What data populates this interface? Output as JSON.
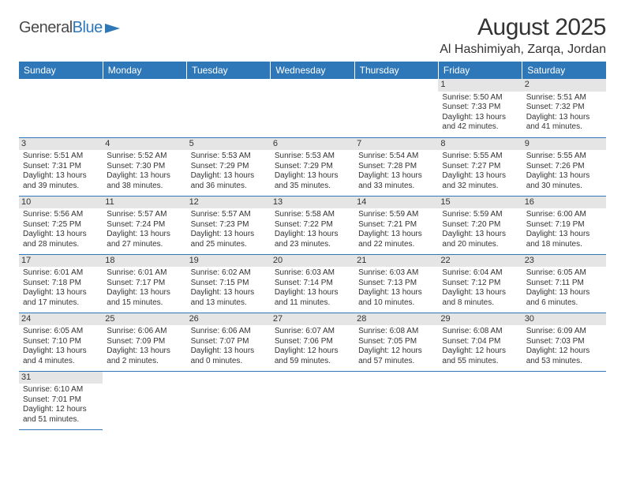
{
  "logo": {
    "word1": "General",
    "word2": "Blue",
    "icon_color": "#2e77b8"
  },
  "title": {
    "month": "August 2025",
    "location": "Al Hashimiyah, Zarqa, Jordan"
  },
  "colors": {
    "header_bg": "#2e77b8",
    "header_fg": "#ffffff",
    "daynum_bg": "#e5e5e5",
    "rule": "#2e77b8"
  },
  "typography": {
    "title_fontsize": 30,
    "location_fontsize": 16,
    "th_fontsize": 12,
    "cell_fontsize": 10
  },
  "calendar": {
    "type": "table",
    "columns": [
      "Sunday",
      "Monday",
      "Tuesday",
      "Wednesday",
      "Thursday",
      "Friday",
      "Saturday"
    ],
    "weeks": [
      [
        null,
        null,
        null,
        null,
        null,
        {
          "n": "1",
          "sr": "5:50 AM",
          "ss": "7:33 PM",
          "dl": "13 hours and 42 minutes."
        },
        {
          "n": "2",
          "sr": "5:51 AM",
          "ss": "7:32 PM",
          "dl": "13 hours and 41 minutes."
        }
      ],
      [
        {
          "n": "3",
          "sr": "5:51 AM",
          "ss": "7:31 PM",
          "dl": "13 hours and 39 minutes."
        },
        {
          "n": "4",
          "sr": "5:52 AM",
          "ss": "7:30 PM",
          "dl": "13 hours and 38 minutes."
        },
        {
          "n": "5",
          "sr": "5:53 AM",
          "ss": "7:29 PM",
          "dl": "13 hours and 36 minutes."
        },
        {
          "n": "6",
          "sr": "5:53 AM",
          "ss": "7:29 PM",
          "dl": "13 hours and 35 minutes."
        },
        {
          "n": "7",
          "sr": "5:54 AM",
          "ss": "7:28 PM",
          "dl": "13 hours and 33 minutes."
        },
        {
          "n": "8",
          "sr": "5:55 AM",
          "ss": "7:27 PM",
          "dl": "13 hours and 32 minutes."
        },
        {
          "n": "9",
          "sr": "5:55 AM",
          "ss": "7:26 PM",
          "dl": "13 hours and 30 minutes."
        }
      ],
      [
        {
          "n": "10",
          "sr": "5:56 AM",
          "ss": "7:25 PM",
          "dl": "13 hours and 28 minutes."
        },
        {
          "n": "11",
          "sr": "5:57 AM",
          "ss": "7:24 PM",
          "dl": "13 hours and 27 minutes."
        },
        {
          "n": "12",
          "sr": "5:57 AM",
          "ss": "7:23 PM",
          "dl": "13 hours and 25 minutes."
        },
        {
          "n": "13",
          "sr": "5:58 AM",
          "ss": "7:22 PM",
          "dl": "13 hours and 23 minutes."
        },
        {
          "n": "14",
          "sr": "5:59 AM",
          "ss": "7:21 PM",
          "dl": "13 hours and 22 minutes."
        },
        {
          "n": "15",
          "sr": "5:59 AM",
          "ss": "7:20 PM",
          "dl": "13 hours and 20 minutes."
        },
        {
          "n": "16",
          "sr": "6:00 AM",
          "ss": "7:19 PM",
          "dl": "13 hours and 18 minutes."
        }
      ],
      [
        {
          "n": "17",
          "sr": "6:01 AM",
          "ss": "7:18 PM",
          "dl": "13 hours and 17 minutes."
        },
        {
          "n": "18",
          "sr": "6:01 AM",
          "ss": "7:17 PM",
          "dl": "13 hours and 15 minutes."
        },
        {
          "n": "19",
          "sr": "6:02 AM",
          "ss": "7:15 PM",
          "dl": "13 hours and 13 minutes."
        },
        {
          "n": "20",
          "sr": "6:03 AM",
          "ss": "7:14 PM",
          "dl": "13 hours and 11 minutes."
        },
        {
          "n": "21",
          "sr": "6:03 AM",
          "ss": "7:13 PM",
          "dl": "13 hours and 10 minutes."
        },
        {
          "n": "22",
          "sr": "6:04 AM",
          "ss": "7:12 PM",
          "dl": "13 hours and 8 minutes."
        },
        {
          "n": "23",
          "sr": "6:05 AM",
          "ss": "7:11 PM",
          "dl": "13 hours and 6 minutes."
        }
      ],
      [
        {
          "n": "24",
          "sr": "6:05 AM",
          "ss": "7:10 PM",
          "dl": "13 hours and 4 minutes."
        },
        {
          "n": "25",
          "sr": "6:06 AM",
          "ss": "7:09 PM",
          "dl": "13 hours and 2 minutes."
        },
        {
          "n": "26",
          "sr": "6:06 AM",
          "ss": "7:07 PM",
          "dl": "13 hours and 0 minutes."
        },
        {
          "n": "27",
          "sr": "6:07 AM",
          "ss": "7:06 PM",
          "dl": "12 hours and 59 minutes."
        },
        {
          "n": "28",
          "sr": "6:08 AM",
          "ss": "7:05 PM",
          "dl": "12 hours and 57 minutes."
        },
        {
          "n": "29",
          "sr": "6:08 AM",
          "ss": "7:04 PM",
          "dl": "12 hours and 55 minutes."
        },
        {
          "n": "30",
          "sr": "6:09 AM",
          "ss": "7:03 PM",
          "dl": "12 hours and 53 minutes."
        }
      ],
      [
        {
          "n": "31",
          "sr": "6:10 AM",
          "ss": "7:01 PM",
          "dl": "12 hours and 51 minutes."
        },
        null,
        null,
        null,
        null,
        null,
        null
      ]
    ],
    "labels": {
      "sunrise": "Sunrise: ",
      "sunset": "Sunset: ",
      "daylight": "Daylight: "
    }
  }
}
